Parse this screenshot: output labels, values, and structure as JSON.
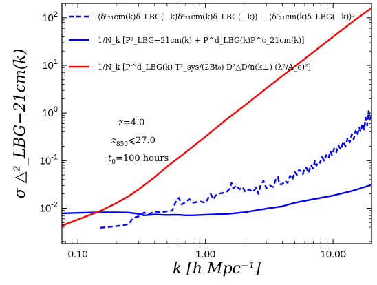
{
  "chart_data": {
    "type": "line",
    "xscale": "log",
    "yscale": "log",
    "xlim": [
      0.075,
      20
    ],
    "ylim": [
      0.0018,
      200
    ],
    "xticks": [
      {
        "value": 0.1,
        "label": "0.10"
      },
      {
        "value": 1,
        "label": "1.00"
      },
      {
        "value": 10,
        "label": "10.00"
      }
    ],
    "yticks": [
      {
        "value": 0.01,
        "base": "10",
        "exp": "-2"
      },
      {
        "value": 0.1,
        "base": "10",
        "exp": "-1"
      },
      {
        "value": 1,
        "base": "10",
        "exp": "0"
      },
      {
        "value": 10,
        "base": "10",
        "exp": "1"
      },
      {
        "value": 100,
        "base": "10",
        "exp": "2"
      }
    ],
    "xlabel": "k [h Mpc⁻¹]",
    "ylabel": "σ △²_LBG−21cm(k)",
    "legend_position": "top-left",
    "series": [
      {
        "name": "⟨δᶜ₂₁cm(k)δ_LBG(−k)δᶜ₂₁cm(k)δ_LBG(−k)⟩ − ⟨δᶜ₂₁cm(k)δ_LBG(−k)⟩²",
        "color": "#0000ff",
        "style": "dashed",
        "points": [
          [
            0.15,
            0.0039
          ],
          [
            0.2,
            0.0042
          ],
          [
            0.25,
            0.0046
          ],
          [
            0.27,
            0.0062
          ],
          [
            0.3,
            0.0068
          ],
          [
            0.33,
            0.0081
          ],
          [
            0.36,
            0.0075
          ],
          [
            0.4,
            0.0085
          ],
          [
            0.45,
            0.0083
          ],
          [
            0.5,
            0.0086
          ],
          [
            0.55,
            0.0089
          ],
          [
            0.58,
            0.013
          ],
          [
            0.62,
            0.0165
          ],
          [
            0.65,
            0.012
          ],
          [
            0.7,
            0.0135
          ],
          [
            0.75,
            0.0155
          ],
          [
            0.8,
            0.013
          ],
          [
            0.9,
            0.014
          ],
          [
            1.0,
            0.013
          ],
          [
            1.1,
            0.02
          ],
          [
            1.15,
            0.0155
          ],
          [
            1.2,
            0.0185
          ],
          [
            1.3,
            0.0205
          ],
          [
            1.45,
            0.0215
          ],
          [
            1.55,
            0.026
          ],
          [
            1.6,
            0.034
          ],
          [
            1.65,
            0.026
          ],
          [
            1.75,
            0.03
          ],
          [
            1.85,
            0.025
          ],
          [
            1.95,
            0.028
          ],
          [
            2.05,
            0.022
          ],
          [
            2.2,
            0.025
          ],
          [
            2.35,
            0.022
          ],
          [
            2.5,
            0.027
          ],
          [
            2.6,
            0.02
          ],
          [
            2.7,
            0.03
          ],
          [
            2.85,
            0.038
          ],
          [
            3.0,
            0.026
          ],
          [
            3.2,
            0.03
          ],
          [
            3.4,
            0.028
          ],
          [
            3.55,
            0.04
          ],
          [
            3.7,
            0.045
          ],
          [
            3.8,
            0.032
          ],
          [
            4.0,
            0.032
          ],
          [
            4.2,
            0.038
          ],
          [
            4.4,
            0.034
          ],
          [
            4.6,
            0.048
          ],
          [
            4.8,
            0.04
          ],
          [
            5.0,
            0.058
          ],
          [
            5.2,
            0.05
          ],
          [
            5.4,
            0.064
          ],
          [
            5.6,
            0.06
          ],
          [
            5.8,
            0.052
          ],
          [
            6.0,
            0.072
          ],
          [
            6.2,
            0.07
          ],
          [
            6.4,
            0.055
          ],
          [
            6.7,
            0.08
          ],
          [
            7.0,
            0.068
          ],
          [
            7.2,
            0.1
          ],
          [
            7.4,
            0.078
          ],
          [
            7.6,
            0.095
          ],
          [
            7.9,
            0.09
          ],
          [
            8.2,
            0.12
          ],
          [
            8.5,
            0.1
          ],
          [
            8.8,
            0.13
          ],
          [
            9.2,
            0.11
          ],
          [
            9.5,
            0.16
          ],
          [
            9.8,
            0.13
          ],
          [
            10.2,
            0.18
          ],
          [
            10.6,
            0.15
          ],
          [
            11.0,
            0.21
          ],
          [
            11.5,
            0.17
          ],
          [
            12.0,
            0.25
          ],
          [
            12.5,
            0.2
          ],
          [
            13.0,
            0.3
          ],
          [
            13.5,
            0.24
          ],
          [
            14.0,
            0.36
          ],
          [
            14.5,
            0.28
          ],
          [
            15.0,
            0.42
          ],
          [
            15.5,
            0.34
          ],
          [
            16.0,
            0.5
          ],
          [
            16.5,
            0.4
          ],
          [
            17.0,
            0.6
          ],
          [
            17.5,
            0.45
          ],
          [
            18.0,
            0.8
          ],
          [
            18.5,
            0.55
          ],
          [
            19.0,
            1.1
          ],
          [
            19.5,
            0.75
          ],
          [
            20.0,
            0.95
          ]
        ]
      },
      {
        "name": "1/N_k [P²_LBG−21cm(k) + P^d_LBG(k)P^c_21cm(k)]",
        "color": "#0000ff",
        "style": "solid",
        "points": [
          [
            0.075,
            0.0078
          ],
          [
            0.1,
            0.008
          ],
          [
            0.15,
            0.0082
          ],
          [
            0.2,
            0.0082
          ],
          [
            0.25,
            0.0081
          ],
          [
            0.3,
            0.0076
          ],
          [
            0.33,
            0.0071
          ],
          [
            0.4,
            0.0074
          ],
          [
            0.5,
            0.0072
          ],
          [
            0.6,
            0.0073
          ],
          [
            0.7,
            0.0071
          ],
          [
            0.8,
            0.0071
          ],
          [
            0.9,
            0.0072
          ],
          [
            1.0,
            0.0073
          ],
          [
            1.5,
            0.0076
          ],
          [
            2.0,
            0.0082
          ],
          [
            3.0,
            0.0098
          ],
          [
            4.0,
            0.011
          ],
          [
            5.0,
            0.013
          ],
          [
            7.0,
            0.0155
          ],
          [
            10.0,
            0.0185
          ],
          [
            14.0,
            0.023
          ],
          [
            20.0,
            0.031
          ]
        ]
      },
      {
        "name": "1/N_k [P^d_LBG(k) T²_sys/(2Bt₀) D²△D/n(k⊥) (λ²/A_e)²]",
        "color": "#ff0000",
        "style": "solid",
        "points": [
          [
            0.075,
            0.0043
          ],
          [
            0.1,
            0.0058
          ],
          [
            0.15,
            0.0088
          ],
          [
            0.2,
            0.0128
          ],
          [
            0.25,
            0.018
          ],
          [
            0.3,
            0.025
          ],
          [
            0.4,
            0.045
          ],
          [
            0.5,
            0.075
          ],
          [
            0.7,
            0.15
          ],
          [
            1.0,
            0.32
          ],
          [
            1.5,
            0.78
          ],
          [
            2.0,
            1.4
          ],
          [
            3.0,
            3.3
          ],
          [
            4.0,
            6.0
          ],
          [
            5.0,
            9.5
          ],
          [
            7.0,
            19
          ],
          [
            10.0,
            40
          ],
          [
            15.0,
            92
          ],
          [
            20.0,
            160
          ]
        ]
      }
    ],
    "legend": [
      {
        "text": "⟨δᶜ₂₁cm(k)δ_LBG(−k)δᶜ₂₁cm(k)δ_LBG(−k)⟩ − ⟨δᶜ₂₁cm(k)δ_LBG(−k)⟩²"
      },
      {
        "text": "1/N_k [P²_LBG−21cm(k) + P^d_LBG(k)P^c_21cm(k)]"
      },
      {
        "text": "1/N_k [P^d_LBG(k) T²_sys/(2Bt₀) D²△D/n(k⊥) (λ²/A_e)²]"
      }
    ],
    "annotations": [
      {
        "label": "z",
        "sub": "",
        "value": "=4.0"
      },
      {
        "label": "z",
        "sub": "850",
        "value": "⩽27.0"
      },
      {
        "label": "t",
        "sub": "0",
        "value": "=100 hours"
      }
    ]
  }
}
